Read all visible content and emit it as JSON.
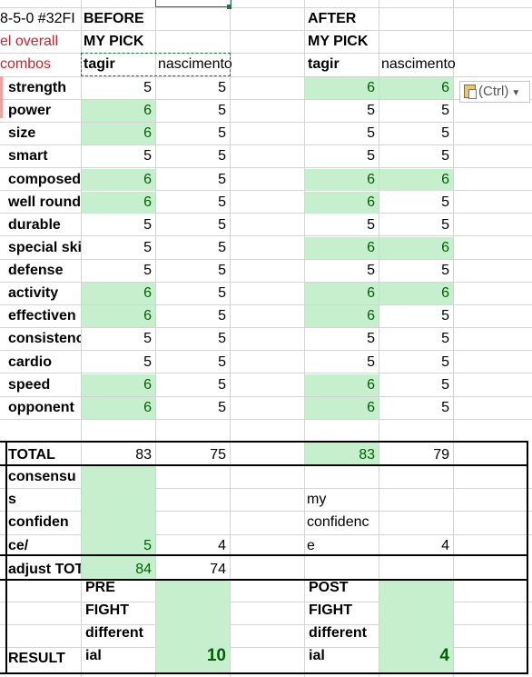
{
  "header_left": {
    "title": "8-5-0 #32FI",
    "subtitle": "el overall",
    "combos": "combos"
  },
  "before": {
    "label": "BEFORE",
    "pick": "MY PICK",
    "f1": "tagir",
    "f2": "nascimento"
  },
  "after": {
    "label": "AFTER",
    "pick": "MY PICK",
    "f1": "tagir",
    "f2": "nascimento"
  },
  "rows": [
    {
      "label": "strength",
      "b1": "5",
      "b2": "5",
      "a1": "6",
      "a2": "6"
    },
    {
      "label": "power",
      "b1": "6",
      "b2": "5",
      "a1": "5",
      "a2": "5"
    },
    {
      "label": "size",
      "b1": "6",
      "b2": "5",
      "a1": "5",
      "a2": "5"
    },
    {
      "label": "smart",
      "b1": "5",
      "b2": "5",
      "a1": "5",
      "a2": "5"
    },
    {
      "label": "composed",
      "b1": "6",
      "b2": "5",
      "a1": "6",
      "a2": "6"
    },
    {
      "label": "well round",
      "b1": "6",
      "b2": "5",
      "a1": "6",
      "a2": "5"
    },
    {
      "label": "durable",
      "b1": "5",
      "b2": "5",
      "a1": "5",
      "a2": "5"
    },
    {
      "label": "special ski",
      "b1": "5",
      "b2": "5",
      "a1": "6",
      "a2": "6"
    },
    {
      "label": "defense",
      "b1": "5",
      "b2": "5",
      "a1": "5",
      "a2": "5"
    },
    {
      "label": "activity",
      "b1": "6",
      "b2": "5",
      "a1": "6",
      "a2": "6"
    },
    {
      "label": "effectiven",
      "b1": "6",
      "b2": "5",
      "a1": "6",
      "a2": "5"
    },
    {
      "label": "consistenc",
      "b1": "5",
      "b2": "5",
      "a1": "5",
      "a2": "5"
    },
    {
      "label": "cardio",
      "b1": "5",
      "b2": "5",
      "a1": "5",
      "a2": "5"
    },
    {
      "label": "speed",
      "b1": "6",
      "b2": "5",
      "a1": "6",
      "a2": "5"
    },
    {
      "label": "opponent",
      "b1": "6",
      "b2": "5",
      "a1": "6",
      "a2": "5"
    }
  ],
  "total": {
    "label": "TOTAL",
    "b1": "83",
    "b2": "75",
    "a1": "83",
    "a2": "79"
  },
  "confidence": {
    "label_lines": [
      "consensu",
      "s",
      "confiden",
      "ce/"
    ],
    "b1": "5",
    "b2": "4",
    "after_lines": [
      "my",
      "confidenc",
      "e"
    ],
    "a2": "4"
  },
  "adjust": {
    "label": "adjust TOT",
    "b1": "84",
    "b2": "74"
  },
  "result": {
    "label": "RESULT",
    "pre_lines": [
      "PRE",
      "FIGHT",
      "different",
      "ial"
    ],
    "pre_value": "10",
    "post_lines": [
      "POST",
      "FIGHT",
      "different",
      "ial"
    ],
    "post_value": "4"
  },
  "paste_button": {
    "label": "(Ctrl)",
    "icon": "clipboard-icon",
    "chevron": "chevron-down-icon"
  },
  "colors": {
    "good_fill": "#c6efce",
    "good_text": "#006100",
    "selection": "#217346",
    "red_text": "#c0272d"
  }
}
